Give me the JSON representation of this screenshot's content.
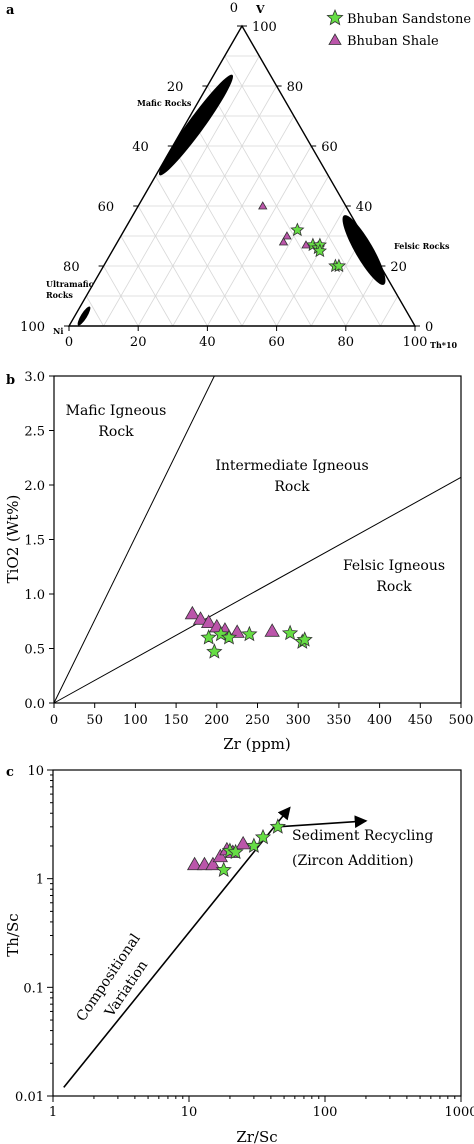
{
  "colors": {
    "sandstone": "#66dd44",
    "shale": "#bb55aa",
    "grid": "#d8d8d8",
    "field": "#000000"
  },
  "legend": [
    {
      "label": "Bhuban Sandstone",
      "marker": "star"
    },
    {
      "label": "Bhuban Shale",
      "marker": "triangle"
    }
  ],
  "chart_data": [
    {
      "panel": "a",
      "type": "scatter",
      "subtype": "ternary",
      "corner_labels": {
        "top": "V",
        "left": "Ni",
        "right": "Th*10"
      },
      "left_axis_ticks": [
        "0",
        "20",
        "40",
        "60",
        "80",
        "100"
      ],
      "right_axis_ticks": [
        "100",
        "80",
        "60",
        "40",
        "20",
        "0"
      ],
      "bottom_axis_ticks": [
        "0",
        "20",
        "40",
        "60",
        "80",
        "100"
      ],
      "grid": true,
      "fields": [
        "Mafic Rocks",
        "Felsic Rocks",
        "Ultramafic Rocks"
      ],
      "series": [
        {
          "name": "Bhuban Sandstone",
          "points": [
            {
              "v": 32,
              "ni": 18,
              "th10": 50
            },
            {
              "v": 27,
              "ni": 16,
              "th10": 57
            },
            {
              "v": 26,
              "ni": 15,
              "th10": 59
            },
            {
              "v": 27,
              "ni": 14,
              "th10": 59
            },
            {
              "v": 25,
              "ni": 15,
              "th10": 60
            },
            {
              "v": 20,
              "ni": 13,
              "th10": 67
            },
            {
              "v": 20,
              "ni": 12,
              "th10": 68
            }
          ]
        },
        {
          "name": "Bhuban Shale",
          "points": [
            {
              "v": 40,
              "ni": 24,
              "th10": 36
            },
            {
              "v": 30,
              "ni": 22,
              "th10": 48
            },
            {
              "v": 28,
              "ni": 24,
              "th10": 48
            },
            {
              "v": 27,
              "ni": 18,
              "th10": 55
            }
          ]
        }
      ]
    },
    {
      "panel": "b",
      "type": "scatter",
      "xlabel": "Zr (ppm)",
      "ylabel": "TiO2 (Wt%)",
      "xlim": [
        0,
        500
      ],
      "ylim": [
        0,
        3
      ],
      "xticks": [
        "0",
        "50",
        "100",
        "150",
        "200",
        "250",
        "300",
        "350",
        "400",
        "450",
        "500"
      ],
      "yticks": [
        "0.0",
        "0.5",
        "1.0",
        "1.5",
        "2.0",
        "2.5",
        "3.0"
      ],
      "annotations": [
        "Mafic Igneous",
        "Rock",
        "Intermediate Igneous",
        "Rock",
        "Felsic Igneous",
        "Rock"
      ],
      "lines": [
        {
          "from": [
            0,
            0
          ],
          "to": [
            197,
            3.0
          ]
        },
        {
          "from": [
            0,
            0
          ],
          "to": [
            500,
            2.07
          ]
        }
      ],
      "series": [
        {
          "name": "Bhuban Sandstone",
          "points": [
            [
              190,
              0.6
            ],
            [
              197,
              0.47
            ],
            [
              205,
              0.63
            ],
            [
              215,
              0.6
            ],
            [
              240,
              0.63
            ],
            [
              290,
              0.64
            ],
            [
              305,
              0.56
            ],
            [
              308,
              0.58
            ]
          ]
        },
        {
          "name": "Bhuban Shale",
          "points": [
            [
              170,
              0.82
            ],
            [
              180,
              0.77
            ],
            [
              190,
              0.74
            ],
            [
              200,
              0.7
            ],
            [
              210,
              0.67
            ],
            [
              225,
              0.65
            ],
            [
              268,
              0.66
            ]
          ]
        }
      ]
    },
    {
      "panel": "c",
      "type": "scatter",
      "xlabel": "Zr/Sc",
      "ylabel": "Th/Sc",
      "xscale": "log",
      "yscale": "log",
      "xlim": [
        1,
        1000
      ],
      "ylim": [
        0.01,
        10
      ],
      "xticks": [
        "1",
        "10",
        "100",
        "1000"
      ],
      "yticks": [
        "0.01",
        "0.1",
        "1",
        "10"
      ],
      "annotations": [
        "Sediment Recycling",
        "(Zircon Addition)",
        "Compositional",
        "Variation"
      ],
      "arrows": [
        {
          "from": [
            1.2,
            0.012
          ],
          "to": [
            55,
            4.5
          ]
        },
        {
          "from": [
            45,
            3.0
          ],
          "to": [
            200,
            3.4
          ]
        }
      ],
      "series": [
        {
          "name": "Bhuban Sandstone",
          "points": [
            [
              18,
              1.2
            ],
            [
              20,
              1.8
            ],
            [
              22,
              1.75
            ],
            [
              30,
              2.0
            ],
            [
              35,
              2.4
            ],
            [
              45,
              3.0
            ]
          ]
        },
        {
          "name": "Bhuban Shale",
          "points": [
            [
              11,
              1.35
            ],
            [
              13,
              1.35
            ],
            [
              15,
              1.35
            ],
            [
              17,
              1.6
            ],
            [
              19,
              1.85
            ],
            [
              21,
              1.75
            ],
            [
              25,
              2.1
            ]
          ]
        }
      ]
    }
  ]
}
